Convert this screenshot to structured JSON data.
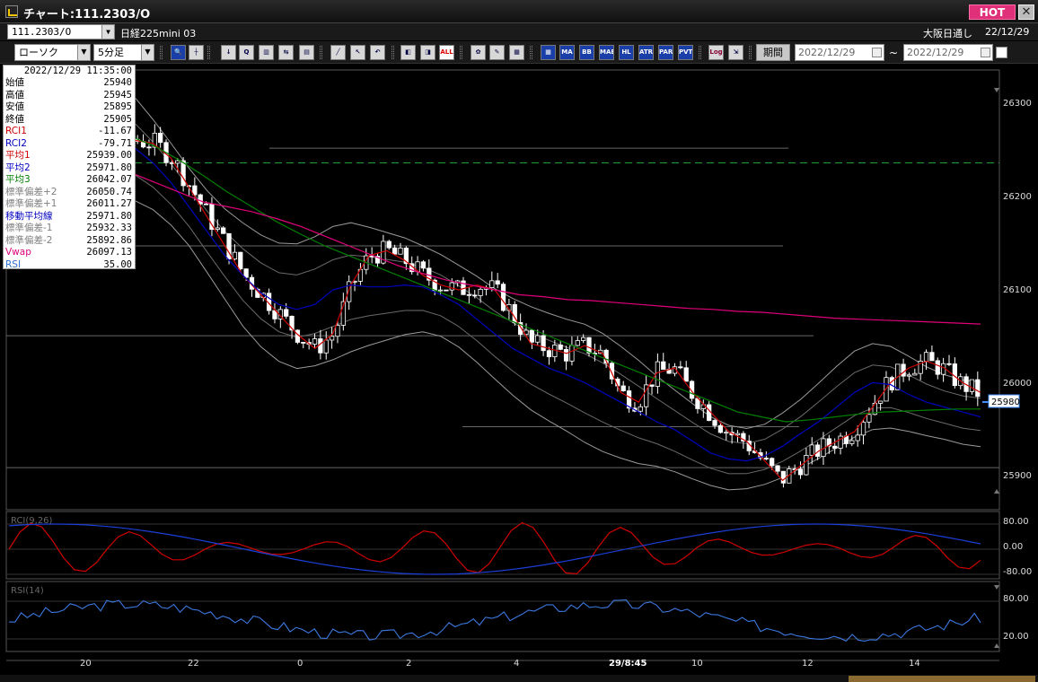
{
  "titlebar": {
    "title": "チャート:111.2303/O",
    "hot_label": "HOT",
    "close_label": "✕"
  },
  "row1": {
    "symbol_code": "111.2303/O",
    "symbol_name": "日経225mini 03",
    "exchange": "大阪日通し",
    "exchange_date": "22/12/29"
  },
  "row2": {
    "chart_type": "ローソク",
    "interval": "5分足",
    "tool_labels": [
      "MA",
      "BB",
      "MAE",
      "HL",
      "ATR",
      "PAR",
      "PVT",
      "Log",
      "ALL"
    ],
    "period_label": "期間",
    "date_from": "2022/12/29",
    "date_to": "2022/12/29",
    "range_sep": "~"
  },
  "info_panel": {
    "datetime": "2022/12/29  11:35:00",
    "rows": [
      {
        "label": "始値",
        "value": "25940",
        "color": "#000000"
      },
      {
        "label": "高値",
        "value": "25945",
        "color": "#000000"
      },
      {
        "label": "安値",
        "value": "25895",
        "color": "#000000"
      },
      {
        "label": "終値",
        "value": "25905",
        "color": "#000000"
      },
      {
        "label": "RCI1",
        "value": "-11.67",
        "color": "#d00000"
      },
      {
        "label": "RCI2",
        "value": "-79.71",
        "color": "#0000c0"
      },
      {
        "label": "平均1",
        "value": "25939.00",
        "color": "#d00000"
      },
      {
        "label": "平均2",
        "value": "25971.80",
        "color": "#0000c0"
      },
      {
        "label": "平均3",
        "value": "26042.07",
        "color": "#008000"
      },
      {
        "label": "標準偏差+2",
        "value": "26050.74",
        "color": "#808080"
      },
      {
        "label": "標準偏差+1",
        "value": "26011.27",
        "color": "#808080"
      },
      {
        "label": "移動平均線",
        "value": "25971.80",
        "color": "#0000c0"
      },
      {
        "label": "標準偏差-1",
        "value": "25932.33",
        "color": "#808080"
      },
      {
        "label": "標準偏差-2",
        "value": "25892.86",
        "color": "#808080"
      },
      {
        "label": "Vwap",
        "value": "26097.13",
        "color": "#e0007a"
      },
      {
        "label": "RSI",
        "value": "35.00",
        "color": "#3070d0"
      }
    ]
  },
  "chart_data": [
    {
      "type": "candlestick",
      "y_ticks": [
        "26300",
        "26200",
        "26100",
        "26000",
        "25900"
      ],
      "ylim": [
        25880,
        26330
      ],
      "last_price_tag": "25980",
      "x_ticks": [
        "20",
        "22",
        "0",
        "2",
        "4",
        "29/8:45",
        "10",
        "12",
        "14"
      ],
      "reference_lines": [
        26235,
        26250,
        26150,
        26058,
        25965,
        25923
      ],
      "series": [
        {
          "name": "平均1",
          "color": "#d00000",
          "values": [
            26290,
            26290,
            26285,
            26280,
            26275,
            26265,
            26262,
            26258,
            26255,
            26240,
            26210,
            26180,
            26150,
            26120,
            26100,
            26080,
            26060,
            26045,
            26060,
            26110,
            26140,
            26145,
            26135,
            26120,
            26110,
            26105,
            26110,
            26105,
            26080,
            26050,
            26045,
            26040,
            26048,
            26040,
            26000,
            25990,
            26020,
            26025,
            26000,
            25980,
            25960,
            25950,
            25930,
            25910,
            25925,
            25940,
            25950,
            25960,
            25985,
            26010,
            26025,
            26032,
            26025,
            26010,
            26000
          ]
        },
        {
          "name": "平均2",
          "color": "#0000c0",
          "values": [
            26295,
            26293,
            26290,
            26285,
            26278,
            26270,
            26262,
            26250,
            26235,
            26215,
            26190,
            26165,
            26140,
            26120,
            26102,
            26090,
            26085,
            26090,
            26105,
            26110,
            26108,
            26108,
            26110,
            26108,
            26100,
            26090,
            26075,
            26060,
            26045,
            26035,
            26025,
            26018,
            26010,
            26000,
            25990,
            25980,
            25970,
            25962,
            25950,
            25938,
            25932,
            25930,
            25935,
            25945,
            25958,
            25970,
            25985,
            26000,
            26010,
            26008,
            25998,
            25990,
            25985,
            25980,
            25975
          ]
        },
        {
          "name": "平均3",
          "color": "#008000",
          "values": [
            26270,
            26272,
            26275,
            26275,
            26270,
            26262,
            26252,
            26238,
            26222,
            26205,
            26190,
            26175,
            26162,
            26150,
            26140,
            26130,
            26120,
            26110,
            26100,
            26090,
            26080,
            26070,
            26060,
            26050,
            26040,
            26030,
            26020,
            26010,
            26000,
            25990,
            25980,
            25975,
            25970,
            25972,
            25975,
            25978,
            25980,
            25981,
            25982,
            25983,
            25983
          ]
        },
        {
          "name": "Vwap",
          "color": "#e0007a",
          "values": [
            26255,
            26253,
            26250,
            26245,
            26235,
            26225,
            26215,
            26205,
            26195,
            26190,
            26185,
            26178,
            26170,
            26160,
            26150,
            26140,
            26130,
            26122,
            26115,
            26110,
            26105,
            26100,
            26098,
            26095,
            26094,
            26092,
            26090,
            26088,
            26086,
            26085,
            26083,
            26082,
            26080,
            26078,
            26076,
            26075,
            26074,
            26073,
            26072,
            26071,
            26070
          ]
        }
      ]
    },
    {
      "type": "line",
      "title": "RCI(9,26)",
      "y_ticks": [
        "80.00",
        "0.00",
        "-80.00"
      ],
      "ylim": [
        -100,
        100
      ]
    },
    {
      "type": "line",
      "title": "RSI(14)",
      "y_ticks": [
        "80.00",
        "20.00"
      ],
      "ylim": [
        0,
        100
      ]
    }
  ]
}
